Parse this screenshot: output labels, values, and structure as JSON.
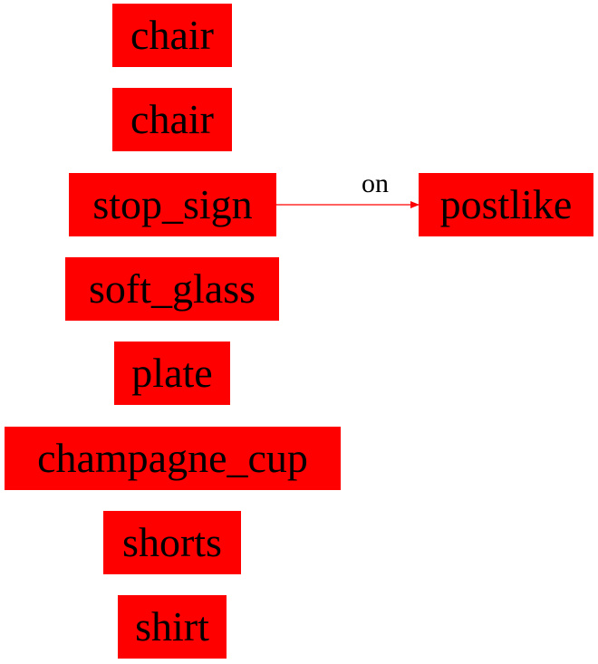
{
  "nodes": {
    "chair_1": "chair",
    "chair_2": "chair",
    "stop_sign": "stop_sign",
    "soft_glass": "soft_glass",
    "plate": "plate",
    "champagne_cup": "champagne_cup",
    "shorts": "shorts",
    "shirt": "shirt",
    "postlike": "postlike"
  },
  "edges": [
    {
      "from": "stop_sign",
      "to": "postlike",
      "label": "on"
    }
  ],
  "colors": {
    "node_fill": "#ff0000",
    "edge": "#ff0000",
    "text": "#000000"
  }
}
